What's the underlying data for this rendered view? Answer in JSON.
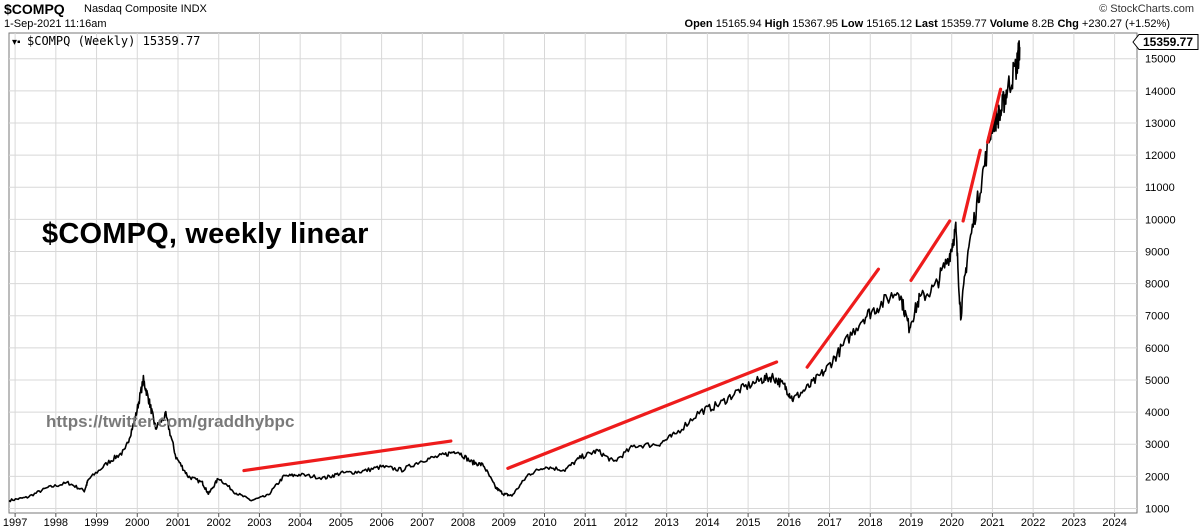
{
  "header": {
    "symbol": "$COMPQ",
    "name": "Nasdaq Composite INDX",
    "date": "1-Sep-2021 11:16am",
    "logo": "© StockCharts.com",
    "quote": {
      "open_label": "Open",
      "open": "15165.94",
      "high_label": "High",
      "high": "15367.95",
      "low_label": "Low",
      "low": "15165.12",
      "last_label": "Last",
      "last": "15359.77",
      "volume_label": "Volume",
      "volume": "8.2B",
      "chg_label": "Chg",
      "chg": "+230.27 (+1.52%)"
    }
  },
  "overlay_title": "$COMPQ, weekly linear",
  "watermark": "https://twitter.com/graddhybpc",
  "colors": {
    "price": "#000000",
    "trend": "#ee1c1c",
    "grid": "#d8d8d8"
  },
  "chart_data": {
    "type": "line",
    "legend": "$COMPQ (Weekly) 15359.77",
    "last_label": "15359.77",
    "x_ticks": [
      "1997",
      "1998",
      "1999",
      "2000",
      "2001",
      "2002",
      "2003",
      "2004",
      "2005",
      "2006",
      "2007",
      "2008",
      "2009",
      "2010",
      "2011",
      "2012",
      "2013",
      "2014",
      "2015",
      "2016",
      "2017",
      "2018",
      "2019",
      "2020",
      "2021",
      "2022",
      "2023",
      "2024"
    ],
    "y_ticks": [
      "1000",
      "2000",
      "3000",
      "4000",
      "5000",
      "6000",
      "7000",
      "8000",
      "9000",
      "10000",
      "11000",
      "12000",
      "13000",
      "14000",
      "15000"
    ],
    "xlim": [
      1996.85,
      2024.55
    ],
    "ylim": [
      860,
      15800
    ],
    "grid": true,
    "series": [
      {
        "x": [
          1996.85,
          1997.3,
          1997.8,
          1998.3,
          1998.7,
          1998.8,
          1999.3,
          1999.7,
          1999.95,
          2000.15,
          2000.3,
          2000.45,
          2000.7,
          2000.95,
          2001.25,
          2001.6,
          2001.75,
          2002.0,
          2002.4,
          2002.8,
          2003.2,
          2003.6,
          2004.0,
          2004.6,
          2005.0,
          2005.5,
          2006.0,
          2006.5,
          2007.0,
          2007.5,
          2007.85,
          2008.2,
          2008.5,
          2008.8,
          2009.0,
          2009.2,
          2009.6,
          2010.0,
          2010.5,
          2010.9,
          2011.3,
          2011.7,
          2012.2,
          2012.8,
          2013.2,
          2013.8,
          2014.3,
          2014.8,
          2015.3,
          2015.6,
          2015.9,
          2016.1,
          2016.5,
          2016.9,
          2017.3,
          2017.8,
          2018.2,
          2018.7,
          2018.95,
          2019.2,
          2019.6,
          2019.95,
          2020.1,
          2020.22,
          2020.4,
          2020.7,
          2021.0,
          2021.2,
          2021.35,
          2021.6,
          2021.67
        ],
        "y": [
          1250,
          1350,
          1650,
          1800,
          1550,
          1900,
          2450,
          2800,
          3800,
          5000,
          4300,
          3500,
          3900,
          2600,
          2000,
          1800,
          1450,
          1950,
          1500,
          1250,
          1400,
          2000,
          2050,
          1950,
          2100,
          2150,
          2300,
          2200,
          2500,
          2650,
          2800,
          2450,
          2350,
          1650,
          1450,
          1400,
          2050,
          2300,
          2200,
          2600,
          2800,
          2450,
          2950,
          3000,
          3300,
          4000,
          4250,
          4700,
          5000,
          5100,
          4800,
          4400,
          4800,
          5300,
          6000,
          6900,
          7300,
          7800,
          6650,
          7500,
          7900,
          8900,
          9700,
          7000,
          9000,
          11000,
          13000,
          13300,
          14000,
          14800,
          15359.77
        ]
      }
    ],
    "annotations": [
      {
        "type": "trend_line",
        "x": [
          2002.62,
          2007.7
        ],
        "y": [
          2180,
          3100
        ]
      },
      {
        "type": "trend_line",
        "x": [
          2009.1,
          2015.7
        ],
        "y": [
          2250,
          5560
        ]
      },
      {
        "type": "trend_line",
        "x": [
          2016.45,
          2018.2
        ],
        "y": [
          5400,
          8450
        ]
      },
      {
        "type": "trend_line",
        "x": [
          2019.0,
          2019.95
        ],
        "y": [
          8100,
          9950
        ]
      },
      {
        "type": "trend_line",
        "x": [
          2020.28,
          2020.7
        ],
        "y": [
          9950,
          12150
        ]
      },
      {
        "type": "trend_line",
        "x": [
          2020.88,
          2021.2
        ],
        "y": [
          12400,
          14050
        ]
      }
    ]
  }
}
